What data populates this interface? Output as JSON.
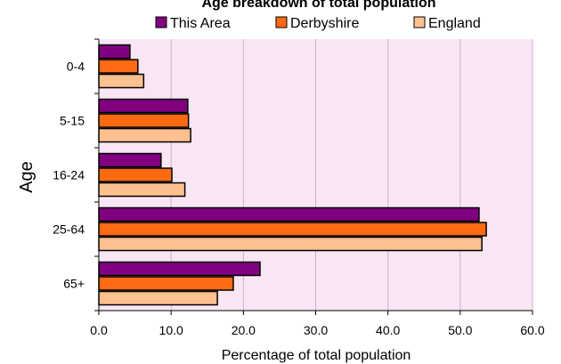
{
  "chart_data": {
    "type": "bar",
    "orientation": "horizontal",
    "title": "Age breakdown of total population",
    "xlabel": "Percentage of total population",
    "ylabel": "Age",
    "categories": [
      "0-4",
      "5-15",
      "16-24",
      "25-64",
      "65+"
    ],
    "xlim": [
      0,
      60
    ],
    "xticks": [
      "0.0",
      "10.0",
      "20.0",
      "30.0",
      "40.0",
      "50.0",
      "60.0"
    ],
    "grid": "vertical",
    "legend_position": "top",
    "plot_background": "#f8e6f4",
    "series": [
      {
        "name": "This Area",
        "color": "#800080",
        "values": [
          4.3,
          12.3,
          8.6,
          52.6,
          22.3
        ]
      },
      {
        "name": "Derbyshire",
        "color": "#ff6a13",
        "values": [
          5.4,
          12.4,
          10.1,
          53.6,
          18.6
        ]
      },
      {
        "name": "England",
        "color": "#ffc090",
        "values": [
          6.2,
          12.7,
          11.9,
          53.0,
          16.4
        ]
      }
    ]
  }
}
